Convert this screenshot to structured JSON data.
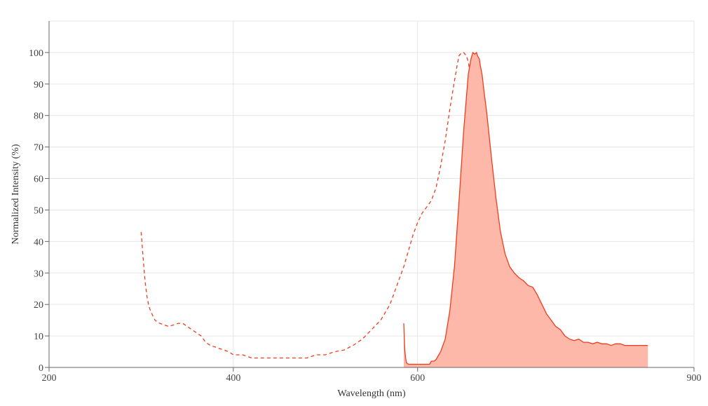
{
  "chart_data": {
    "type": "area",
    "xlabel": "Wavelength (nm)",
    "ylabel": "Normalized Intensity (%)",
    "xlim": [
      200,
      900
    ],
    "ylim": [
      0,
      110
    ],
    "x_ticks": [
      200,
      400,
      600,
      900
    ],
    "y_ticks": [
      0,
      10,
      20,
      30,
      40,
      50,
      60,
      70,
      80,
      90,
      100
    ],
    "grid": true,
    "legend": "none",
    "colors": {
      "line": "#f03c1e",
      "fill": "#fdb8aa",
      "grid": "#e6e6e6",
      "axis": "#666666",
      "text": "#444444"
    },
    "series": [
      {
        "style": "dashed",
        "x": [
          300,
          302,
          304,
          306,
          308,
          310,
          315,
          320,
          325,
          330,
          335,
          340,
          345,
          350,
          355,
          360,
          365,
          370,
          375,
          380,
          385,
          390,
          395,
          400,
          410,
          420,
          430,
          440,
          450,
          460,
          470,
          480,
          490,
          500,
          510,
          520,
          530,
          540,
          550,
          560,
          570,
          575,
          580,
          585,
          590,
          595,
          600,
          605,
          610,
          615,
          620,
          625,
          630,
          635,
          640,
          643,
          645,
          648,
          650,
          653,
          655,
          658,
          660,
          663,
          665,
          668,
          670,
          675,
          680,
          685,
          690,
          695,
          700,
          705,
          710,
          715,
          720
        ],
        "y": [
          43,
          35,
          28,
          23,
          20,
          18,
          15,
          14,
          13.5,
          13,
          13.5,
          14,
          14,
          13,
          12,
          11,
          10,
          8,
          7,
          6.5,
          6,
          5.5,
          5,
          4,
          4,
          3,
          3,
          3,
          3,
          3,
          3,
          3,
          4,
          4,
          5,
          5.5,
          7,
          9,
          12,
          15,
          20,
          24,
          28,
          32,
          37,
          42,
          46,
          49,
          51,
          53,
          57,
          64,
          72,
          82,
          91,
          96,
          99,
          100,
          100,
          99,
          97,
          92,
          85,
          75,
          64,
          50,
          40,
          28,
          17,
          10,
          6,
          4.5,
          4,
          3,
          2,
          1.5,
          1
        ]
      },
      {
        "style": "solid-filled",
        "x": [
          585,
          586,
          587,
          588,
          590,
          595,
          600,
          605,
          610,
          613,
          615,
          618,
          620,
          625,
          630,
          635,
          640,
          645,
          650,
          655,
          658,
          660,
          662,
          664,
          665,
          667,
          668,
          670,
          672,
          675,
          680,
          685,
          690,
          695,
          700,
          705,
          710,
          715,
          720,
          725,
          730,
          735,
          740,
          745,
          750,
          755,
          760,
          765,
          770,
          775,
          780,
          785,
          790,
          795,
          800,
          805,
          810,
          815,
          820,
          825,
          830,
          835,
          840,
          845,
          850
        ],
        "y": [
          14,
          6,
          3,
          1.5,
          1,
          1,
          1,
          1,
          1,
          1,
          2,
          2,
          2.5,
          5,
          9,
          18,
          32,
          53,
          75,
          93,
          98,
          100,
          99.5,
          100,
          99,
          98,
          96,
          93,
          88,
          81,
          67,
          54,
          43,
          36,
          32,
          30,
          28.5,
          27.5,
          26,
          25.5,
          23,
          20,
          17,
          15,
          13,
          12,
          10,
          9,
          8.5,
          9,
          8,
          8,
          7.5,
          8,
          7.5,
          7.5,
          7,
          7.5,
          7.5,
          7,
          7,
          7,
          7,
          7,
          7
        ]
      }
    ]
  }
}
